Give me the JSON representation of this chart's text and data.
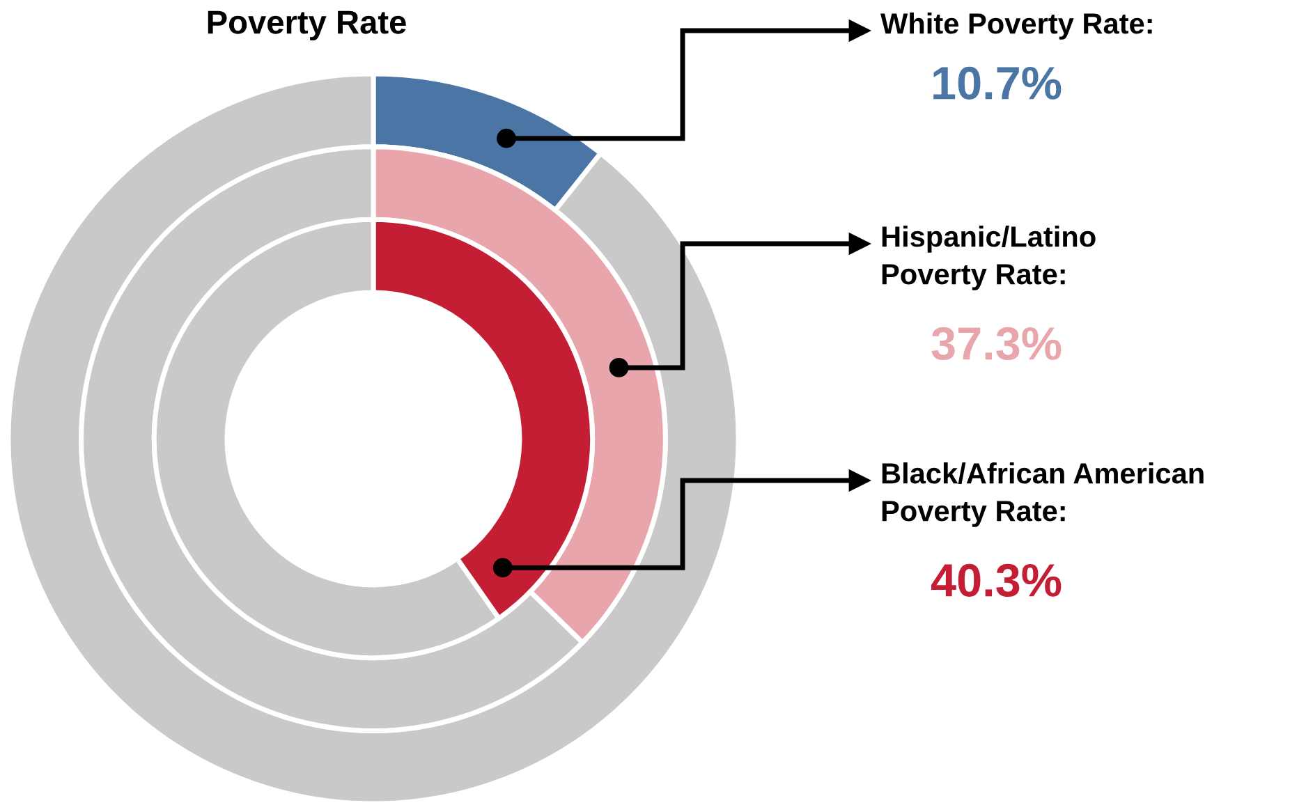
{
  "chart_data": {
    "type": "donut",
    "title": "Poverty Rate",
    "annotations": [
      "10.7%",
      "37.3%",
      "40.3%"
    ],
    "series": [
      {
        "name": "White Poverty Rate:",
        "values": [
          10.7,
          89.3
        ],
        "colors": [
          "#4a75a5",
          "#c9c9c9"
        ]
      },
      {
        "name": "Hispanic/Latino\nPoverty Rate:",
        "values": [
          37.3,
          62.7
        ],
        "colors": [
          "#e8a6ac",
          "#c9c9c9"
        ]
      },
      {
        "name": "Black/African American\nPoverty Rate:",
        "values": [
          40.3,
          59.7
        ],
        "colors": [
          "#c41e34",
          "#c9c9c9"
        ]
      }
    ]
  }
}
